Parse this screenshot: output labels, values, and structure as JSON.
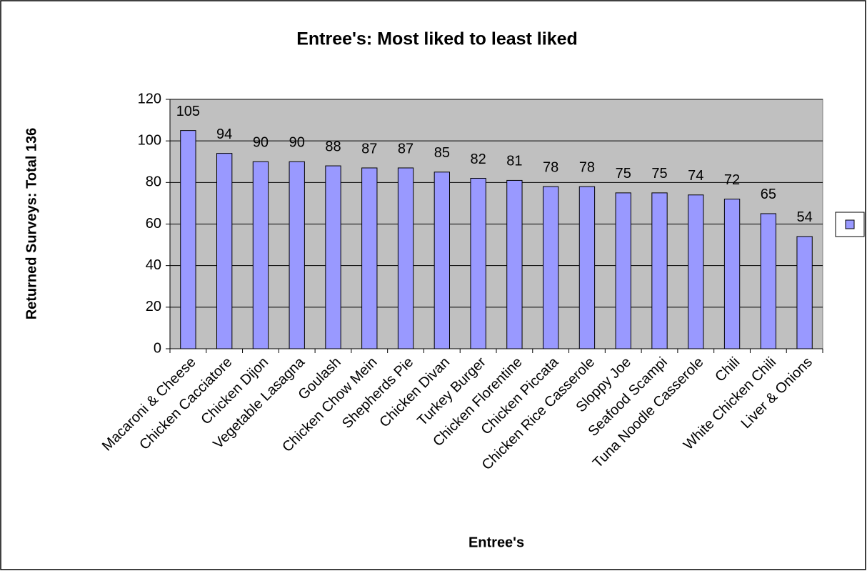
{
  "chart_data": {
    "type": "bar",
    "title": "Entree's: Most liked to least liked",
    "x_label": "Entree's",
    "y_label": "Returned Surveys: Total 136",
    "categories": [
      "Macaroni & Cheese",
      "Chicken Cacciatore",
      "Chicken Dijon",
      "Vegetable Lasagna",
      "Goulash",
      "Chicken Chow Mein",
      "Shepherds Pie",
      "Chicken Divan",
      "Turkey Burger",
      "Chicken Florentine",
      "Chicken Piccata",
      "Chicken Rice Casserole",
      "Sloppy Joe",
      "Seafood Scampi",
      "Tuna Noodle Casserole",
      "Chili",
      "White Chicken Chili",
      "Liver & Onions"
    ],
    "values": [
      105,
      94,
      90,
      90,
      88,
      87,
      87,
      85,
      82,
      81,
      78,
      78,
      75,
      75,
      74,
      72,
      65,
      54
    ],
    "color": "#9999ff",
    "ylim": [
      0,
      120
    ],
    "yticks": [
      0,
      20,
      40,
      60,
      80,
      100,
      120
    ],
    "grid": true,
    "legend": "right"
  }
}
